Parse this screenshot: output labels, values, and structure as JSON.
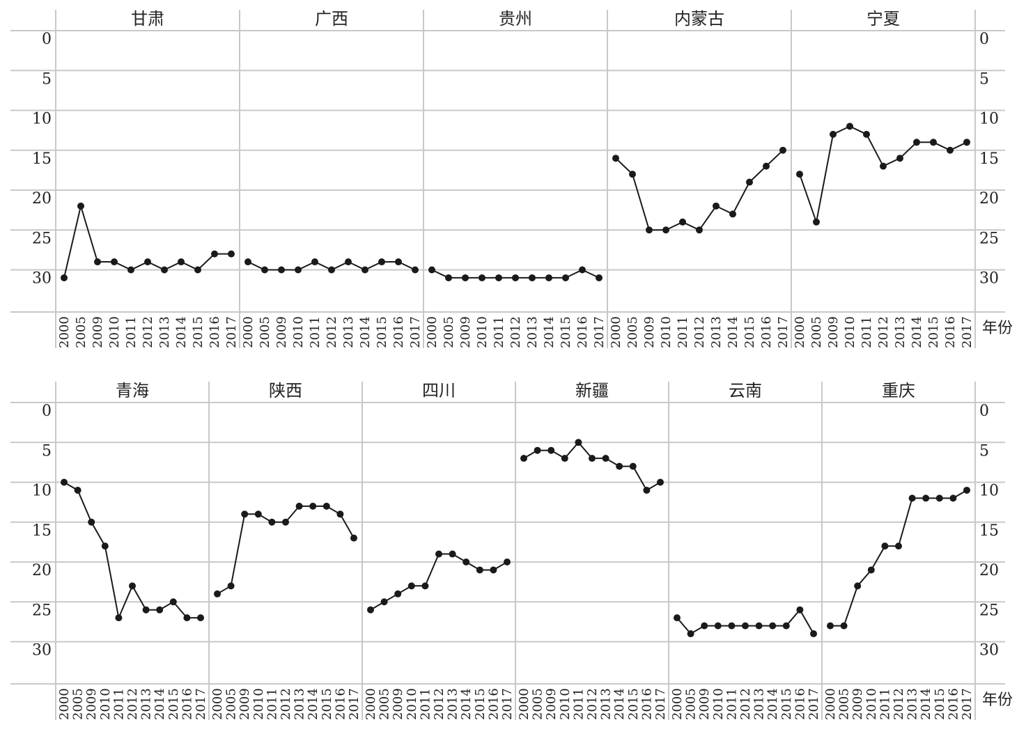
{
  "chart_data": {
    "type": "line",
    "x_axis_label": "年份",
    "y_axis": {
      "ticks": [
        0,
        5,
        10,
        15,
        20,
        25,
        30
      ],
      "range": [
        0,
        34
      ],
      "inverted": true
    },
    "grid": true,
    "x": [
      "2000",
      "2005",
      "2009",
      "2010",
      "2011",
      "2012",
      "2013",
      "2014",
      "2015",
      "2016",
      "2017"
    ],
    "rows": [
      {
        "panels": [
          {
            "name": "甘肃",
            "values": [
              31,
              22,
              29,
              29,
              30,
              29,
              30,
              29,
              30,
              28,
              28
            ]
          },
          {
            "name": "广西",
            "values": [
              29,
              30,
              30,
              30,
              29,
              30,
              29,
              30,
              29,
              29,
              30
            ]
          },
          {
            "name": "贵州",
            "values": [
              30,
              31,
              31,
              31,
              31,
              31,
              31,
              31,
              31,
              30,
              31
            ]
          },
          {
            "name": "内蒙古",
            "values": [
              16,
              18,
              25,
              25,
              24,
              25,
              22,
              23,
              19,
              17,
              15
            ]
          },
          {
            "name": "宁夏",
            "values": [
              18,
              24,
              13,
              12,
              13,
              17,
              16,
              14,
              14,
              15,
              14
            ]
          }
        ]
      },
      {
        "panels": [
          {
            "name": "青海",
            "values": [
              10,
              11,
              15,
              18,
              27,
              23,
              26,
              26,
              25,
              27,
              27
            ]
          },
          {
            "name": "陕西",
            "values": [
              24,
              23,
              14,
              14,
              15,
              15,
              13,
              13,
              13,
              14,
              17
            ]
          },
          {
            "name": "四川",
            "values": [
              26,
              25,
              24,
              23,
              23,
              19,
              19,
              20,
              21,
              21,
              20
            ]
          },
          {
            "name": "新疆",
            "values": [
              7,
              6,
              6,
              7,
              5,
              7,
              7,
              8,
              8,
              11,
              10
            ]
          },
          {
            "name": "云南",
            "values": [
              27,
              29,
              28,
              28,
              28,
              28,
              28,
              28,
              28,
              26,
              29
            ]
          },
          {
            "name": "重庆",
            "values": [
              28,
              28,
              23,
              21,
              18,
              18,
              12,
              12,
              12,
              12,
              11
            ]
          }
        ]
      }
    ]
  }
}
